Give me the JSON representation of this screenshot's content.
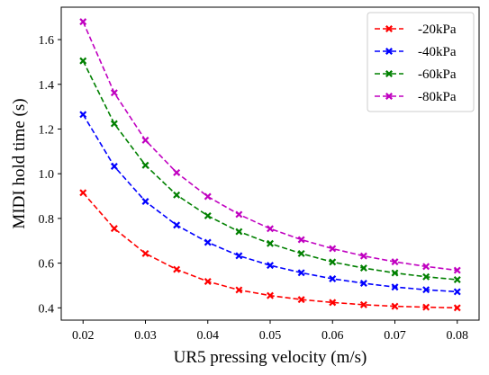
{
  "chart_data": {
    "type": "line",
    "title": "",
    "xlabel": "UR5 pressing velocity (m/s)",
    "ylabel": "MIDI hold time (s)",
    "xlim": [
      0.0165,
      0.0835
    ],
    "ylim": [
      0.345,
      1.745
    ],
    "xticks": [
      0.02,
      0.03,
      0.04,
      0.05,
      0.06,
      0.07,
      0.08
    ],
    "xtick_labels": [
      "0.02",
      "0.03",
      "0.04",
      "0.05",
      "0.06",
      "0.07",
      "0.08"
    ],
    "yticks": [
      0.4,
      0.6,
      0.8,
      1.0,
      1.2,
      1.4,
      1.6
    ],
    "ytick_labels": [
      "0.4",
      "0.6",
      "0.8",
      "1.0",
      "1.2",
      "1.4",
      "1.6"
    ],
    "grid": false,
    "legend_position": "top-right",
    "marker": "x",
    "line_style": "dashed",
    "x": [
      0.02,
      0.025,
      0.03,
      0.035,
      0.04,
      0.045,
      0.05,
      0.055,
      0.06,
      0.065,
      0.07,
      0.075,
      0.08
    ],
    "series": [
      {
        "name": "-20kPa",
        "color": "#ff0000",
        "values": [
          0.915,
          0.755,
          0.643,
          0.572,
          0.518,
          0.48,
          0.455,
          0.437,
          0.424,
          0.414,
          0.407,
          0.403,
          0.4
        ]
      },
      {
        "name": "-40kPa",
        "color": "#0000ff",
        "values": [
          1.265,
          1.033,
          0.876,
          0.77,
          0.693,
          0.633,
          0.59,
          0.557,
          0.53,
          0.51,
          0.493,
          0.481,
          0.472
        ]
      },
      {
        "name": "-60kPa",
        "color": "#008000",
        "values": [
          1.505,
          1.224,
          1.038,
          0.905,
          0.812,
          0.741,
          0.688,
          0.643,
          0.605,
          0.578,
          0.556,
          0.539,
          0.526
        ]
      },
      {
        "name": "-80kPa",
        "color": "#c000c0",
        "values": [
          1.68,
          1.362,
          1.15,
          1.005,
          0.898,
          0.818,
          0.754,
          0.705,
          0.665,
          0.632,
          0.606,
          0.585,
          0.568
        ]
      }
    ]
  }
}
